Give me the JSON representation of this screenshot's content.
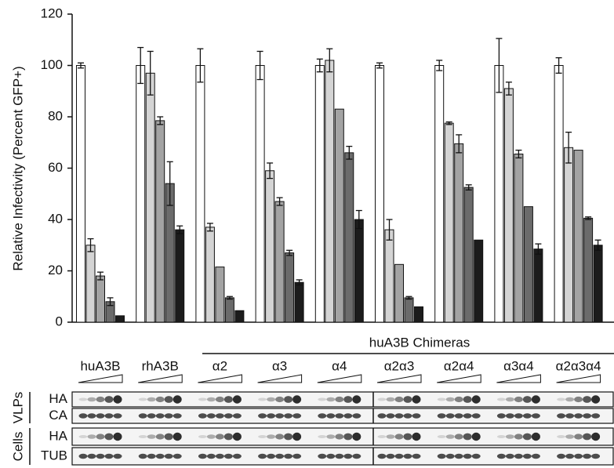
{
  "chart_data": {
    "type": "bar",
    "y_label": "Relative Infectivity (Percent GFP+)",
    "categories": [
      "huA3B",
      "rhA3B",
      "α2",
      "α3",
      "α4",
      "α2α3",
      "α2α4",
      "α3α4",
      "α2α3α4"
    ],
    "annotation": "huA3B Chimeras",
    "ylim": [
      0,
      120
    ],
    "yticks": [
      0,
      20,
      40,
      60,
      80,
      100,
      120
    ],
    "series": [
      {
        "color": "#ffffff",
        "values": [
          100,
          100,
          100,
          100,
          100,
          100,
          100,
          100,
          100
        ],
        "errors": [
          1,
          7,
          6.5,
          5.5,
          2.5,
          1,
          2,
          10.5,
          3
        ]
      },
      {
        "color": "#d4d4d4",
        "values": [
          30,
          97,
          37,
          59,
          102,
          36,
          77.5,
          91,
          68
        ],
        "errors": [
          2.5,
          8.5,
          1.5,
          3,
          4.5,
          4,
          0.5,
          2.5,
          6
        ]
      },
      {
        "color": "#a3a3a3",
        "values": [
          18,
          78.5,
          21.5,
          47,
          83,
          22.5,
          69.5,
          65.5,
          67
        ],
        "errors": [
          1.5,
          1.5,
          0,
          1.5,
          0,
          0,
          3.5,
          1.5,
          0
        ]
      },
      {
        "color": "#6b6b6b",
        "values": [
          8,
          54,
          9.5,
          27,
          66,
          9.5,
          52.5,
          45,
          40.5
        ],
        "errors": [
          1.5,
          8.5,
          0.5,
          1,
          2.5,
          0.5,
          1,
          0,
          0.5
        ]
      },
      {
        "color": "#1c1c1c",
        "values": [
          2.5,
          36,
          4.5,
          15.5,
          40,
          6,
          32,
          28.5,
          30
        ],
        "errors": [
          0,
          1.5,
          0,
          1,
          3.5,
          0,
          0,
          2,
          2
        ]
      }
    ],
    "blot": [
      {
        "label": "VLPs",
        "rows": [
          "HA",
          "CA"
        ]
      },
      {
        "label": "Cells",
        "rows": [
          "HA",
          "TUB"
        ]
      }
    ]
  }
}
